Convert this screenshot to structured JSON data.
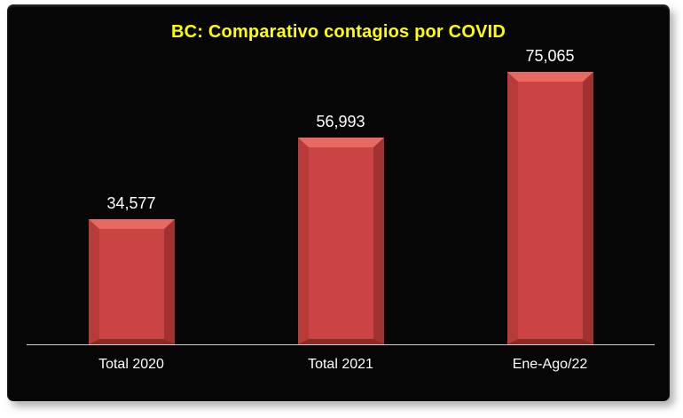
{
  "title": {
    "text": "BC: Comparativo contagios por COVID",
    "color": "#ffff00"
  },
  "panel": {
    "background": "#060606",
    "page_background": "#ffffff"
  },
  "chart_data": {
    "type": "bar",
    "title": "BC: Comparativo contagios por COVID",
    "categories": [
      "Total 2020",
      "Total 2021",
      "Ene-Ago/22"
    ],
    "values": [
      34577,
      56993,
      75065
    ],
    "labels": [
      "34,577",
      "56,993",
      "75,065"
    ],
    "xlabel": "",
    "ylabel": "",
    "ylim": [
      0,
      80000
    ],
    "grid": false,
    "legend": false,
    "label_color": "#ffffff",
    "category_color": "#ffffff",
    "axis_line_color": "#cfcfcf",
    "bar_color": "#c94442",
    "bar_bevel": {
      "top": "#e8695f",
      "left": "#b73c39",
      "right": "#a03231",
      "bottom": "#8a2b28"
    }
  }
}
